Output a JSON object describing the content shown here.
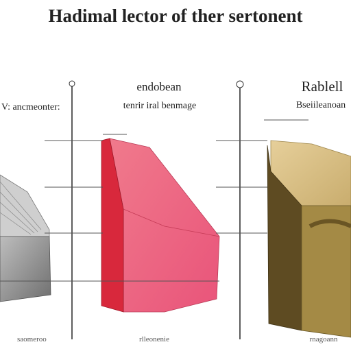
{
  "header": {
    "title": "Hadimal lector of ther sertonent"
  },
  "panels": [
    {
      "label": "V: ancmeonter:",
      "footer": "saomeroo"
    },
    {
      "heading": "endobean",
      "label": "tenrir iral benmage",
      "footer": "rlleonenie"
    },
    {
      "heading": "Rablell",
      "label": "Bseiileanoan",
      "footer": "rnagoann"
    }
  ]
}
